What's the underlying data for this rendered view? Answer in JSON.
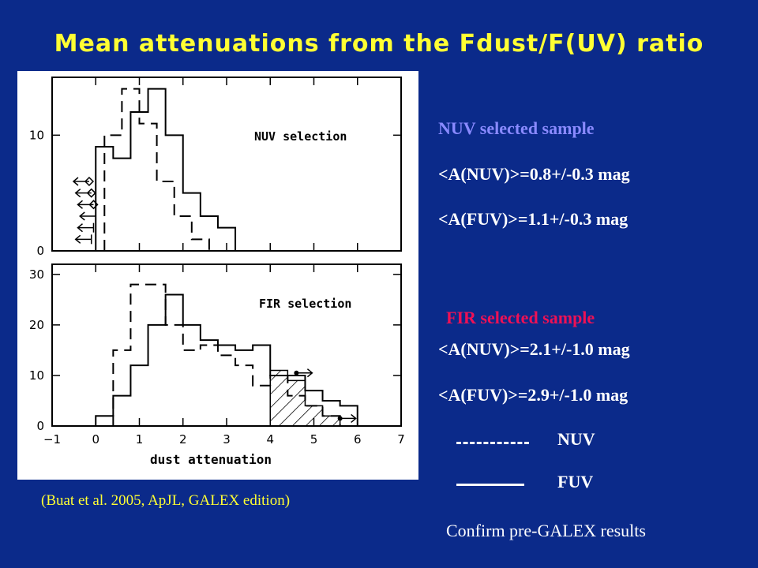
{
  "title": "Mean attenuations from the Fdust/F(UV) ratio",
  "caption": "(Buat et al. 2005, ApJL, GALEX edition)",
  "nuv_block": {
    "heading": "NUV selected sample",
    "line1": "<A(NUV)>=0.8+/-0.3 mag",
    "line2": "<A(FUV)>=1.1+/-0.3 mag"
  },
  "fir_block": {
    "heading": "FIR selected sample",
    "line1": "<A(NUV)>=2.1+/-1.0 mag",
    "line2": "<A(FUV)>=2.9+/-1.0 mag"
  },
  "legend": {
    "nuv": "NUV",
    "fuv": "FUV"
  },
  "conclusion": "Confirm pre-GALEX results",
  "colors": {
    "background": "#0b2a8a",
    "title": "#ffff33",
    "nuv_heading": "#8a8aff",
    "fir_heading": "#ee1155",
    "text": "#ffffff"
  },
  "chart_data": {
    "type": "histogram",
    "xlabel": "dust attenuation",
    "xlim": [
      -1,
      7
    ],
    "xticks": [
      -1,
      0,
      1,
      2,
      3,
      4,
      5,
      6,
      7
    ],
    "bin_width": 0.4,
    "panels": [
      {
        "label": "NUV selection",
        "ylim": [
          0,
          15
        ],
        "yticks": [
          0,
          10
        ],
        "series": [
          {
            "name": "NUV",
            "style": "dashed",
            "edges": [
              0.2,
              0.6,
              1.0,
              1.4,
              1.8,
              2.2,
              2.6
            ],
            "counts": [
              10,
              14,
              11,
              6,
              3,
              1
            ]
          },
          {
            "name": "FUV",
            "style": "solid",
            "edges": [
              0.0,
              0.4,
              0.8,
              1.2,
              1.6,
              2.0,
              2.4,
              2.8,
              3.2
            ],
            "counts": [
              9,
              8,
              12,
              14,
              10,
              5,
              3,
              2
            ]
          }
        ],
        "upper_limits_nuv": [
          6.0,
          5.0,
          4.0
        ],
        "upper_limits_fuv": [
          3.0,
          2.0,
          1.0
        ]
      },
      {
        "label": "FIR selection",
        "ylim": [
          0,
          32
        ],
        "yticks": [
          0,
          10,
          20,
          30
        ],
        "series": [
          {
            "name": "NUV",
            "style": "dashed",
            "edges": [
              0.4,
              0.8,
              1.2,
              1.6,
              2.0,
              2.4,
              2.8,
              3.2,
              3.6,
              4.0,
              4.4,
              4.8,
              5.2,
              5.6
            ],
            "counts": [
              15,
              28,
              28,
              20,
              15,
              16,
              14,
              12,
              8,
              10,
              6,
              4,
              2
            ]
          },
          {
            "name": "FUV",
            "style": "solid",
            "edges": [
              0.0,
              0.4,
              0.8,
              1.2,
              1.6,
              2.0,
              2.4,
              2.8,
              3.2,
              3.6,
              4.0,
              4.4,
              4.8,
              5.2,
              5.6,
              6.0
            ],
            "counts": [
              2,
              6,
              12,
              20,
              26,
              20,
              17,
              16,
              15,
              16,
              10,
              10,
              7,
              5,
              4
            ]
          }
        ],
        "hatched": {
          "edges": [
            4.0,
            4.4,
            4.8,
            5.2,
            5.6
          ],
          "counts": [
            11,
            9,
            4,
            2
          ]
        },
        "upper_limits": [
          4.6,
          5.6
        ]
      }
    ]
  }
}
